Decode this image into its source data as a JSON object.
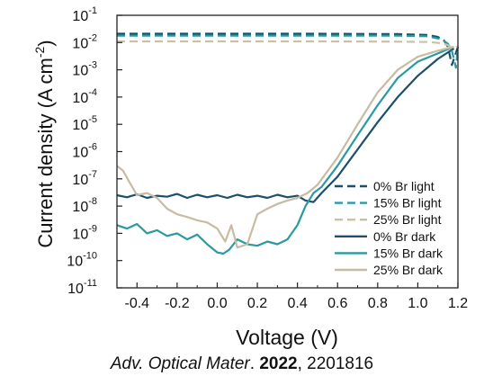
{
  "chart_data": {
    "type": "line",
    "xlabel": "Voltage (V)",
    "ylabel_main": "Current density (A cm",
    "ylabel_sup": "-2",
    "ylabel_close": ")",
    "y_scale": "log",
    "xlim": [
      -0.5,
      1.2
    ],
    "ylim": [
      1e-11,
      0.1
    ],
    "x_ticks": [
      -0.4,
      -0.2,
      0.0,
      0.2,
      0.4,
      0.6,
      0.8,
      1.0,
      1.2
    ],
    "x_tick_labels": [
      "-0.4",
      "-0.2",
      "0.0",
      "0.2",
      "0.4",
      "0.6",
      "0.8",
      "1.0",
      "1.2"
    ],
    "y_ticks": [
      {
        "base": "10",
        "exp": "-1"
      },
      {
        "base": "10",
        "exp": "-2"
      },
      {
        "base": "10",
        "exp": "-3"
      },
      {
        "base": "10",
        "exp": "-4"
      },
      {
        "base": "10",
        "exp": "-5"
      },
      {
        "base": "10",
        "exp": "-6"
      },
      {
        "base": "10",
        "exp": "-7"
      },
      {
        "base": "10",
        "exp": "-8"
      },
      {
        "base": "10",
        "exp": "-9"
      },
      {
        "base": "10",
        "exp": "-10"
      },
      {
        "base": "10",
        "exp": "-11"
      }
    ],
    "grid": false,
    "legend_position": "bottom-right",
    "series": [
      {
        "name": "0% Br light",
        "color": "#1b4f6b",
        "dashed": true,
        "x": [
          -0.5,
          0.0,
          0.5,
          0.9,
          1.05,
          1.1,
          1.13,
          1.15,
          1.17,
          1.2
        ],
        "y": [
          0.021,
          0.021,
          0.021,
          0.0205,
          0.019,
          0.016,
          0.012,
          0.007,
          0.0015,
          0.007
        ]
      },
      {
        "name": "15% Br light",
        "color": "#2a9aa0",
        "dashed": true,
        "x": [
          -0.5,
          0.0,
          0.5,
          0.9,
          1.05,
          1.12,
          1.15,
          1.17,
          1.19,
          1.2
        ],
        "y": [
          0.018,
          0.018,
          0.018,
          0.0178,
          0.017,
          0.013,
          0.009,
          0.005,
          0.0012,
          0.007
        ]
      },
      {
        "name": "25% Br light",
        "color": "#cbbfa8",
        "dashed": true,
        "x": [
          -0.5,
          0.0,
          0.5,
          0.9,
          1.05,
          1.12,
          1.15,
          1.17,
          1.2
        ],
        "y": [
          0.011,
          0.011,
          0.011,
          0.0108,
          0.0105,
          0.0095,
          0.008,
          0.0065,
          0.007
        ]
      },
      {
        "name": "0% Br dark",
        "color": "#1b4f6b",
        "dashed": false,
        "x": [
          -0.5,
          -0.45,
          -0.4,
          -0.35,
          -0.3,
          -0.25,
          -0.2,
          -0.15,
          -0.1,
          -0.05,
          0.0,
          0.05,
          0.1,
          0.15,
          0.2,
          0.25,
          0.3,
          0.35,
          0.4,
          0.44,
          0.48,
          0.52,
          0.6,
          0.7,
          0.8,
          0.9,
          1.0,
          1.1,
          1.18
        ],
        "y": [
          2.5e-08,
          2.1e-08,
          2.7e-08,
          2e-08,
          2.4e-08,
          2.2e-08,
          2.8e-08,
          2e-08,
          2.6e-08,
          2.1e-08,
          2.5e-08,
          2e-08,
          2.6e-08,
          2.1e-08,
          2.4e-08,
          2e-08,
          2.6e-08,
          2.1e-08,
          2.4e-08,
          1.6e-08,
          1.4e-08,
          3e-08,
          1.2e-07,
          1.2e-06,
          1.2e-05,
          0.0001,
          0.0006,
          0.0025,
          0.006
        ]
      },
      {
        "name": "15% Br dark",
        "color": "#2a9aa0",
        "dashed": false,
        "x": [
          -0.5,
          -0.45,
          -0.4,
          -0.35,
          -0.3,
          -0.25,
          -0.2,
          -0.15,
          -0.1,
          -0.05,
          0.0,
          0.03,
          0.06,
          0.1,
          0.15,
          0.2,
          0.25,
          0.3,
          0.35,
          0.4,
          0.44,
          0.48,
          0.52,
          0.6,
          0.7,
          0.8,
          0.9,
          1.0,
          1.1,
          1.18
        ],
        "y": [
          2e-09,
          1.5e-09,
          2.2e-09,
          1e-09,
          1.3e-09,
          8e-10,
          1e-09,
          6e-10,
          9e-10,
          4e-10,
          2e-10,
          1.8e-10,
          2.5e-10,
          6e-10,
          4e-10,
          3.5e-10,
          5e-10,
          4e-10,
          6e-10,
          2e-09,
          1e-08,
          3e-08,
          5e-08,
          3e-07,
          4e-06,
          5e-05,
          0.0005,
          0.002,
          0.004,
          0.007
        ]
      },
      {
        "name": "25% Br dark",
        "color": "#c8bba4",
        "dashed": false,
        "x": [
          -0.5,
          -0.47,
          -0.44,
          -0.4,
          -0.35,
          -0.3,
          -0.25,
          -0.2,
          -0.15,
          -0.1,
          -0.05,
          0.0,
          0.04,
          0.07,
          0.1,
          0.15,
          0.2,
          0.25,
          0.3,
          0.35,
          0.4,
          0.45,
          0.5,
          0.6,
          0.7,
          0.8,
          0.9,
          1.0,
          1.1,
          1.18
        ],
        "y": [
          3e-07,
          2e-07,
          8e-08,
          2.5e-08,
          3e-08,
          2e-08,
          8e-09,
          5e-09,
          4e-09,
          3e-09,
          2.5e-09,
          1.5e-09,
          5e-10,
          2e-09,
          3e-10,
          4e-10,
          5e-09,
          8e-09,
          1.2e-08,
          1.6e-08,
          2e-08,
          3e-08,
          6e-08,
          6e-07,
          1e-05,
          0.00015,
          0.001,
          0.003,
          0.005,
          0.007
        ]
      }
    ]
  },
  "citation": {
    "journal": "Adv. Optical Mater",
    "dot": ". ",
    "year": "2022",
    "sep": ", ",
    "article": "2201816"
  }
}
